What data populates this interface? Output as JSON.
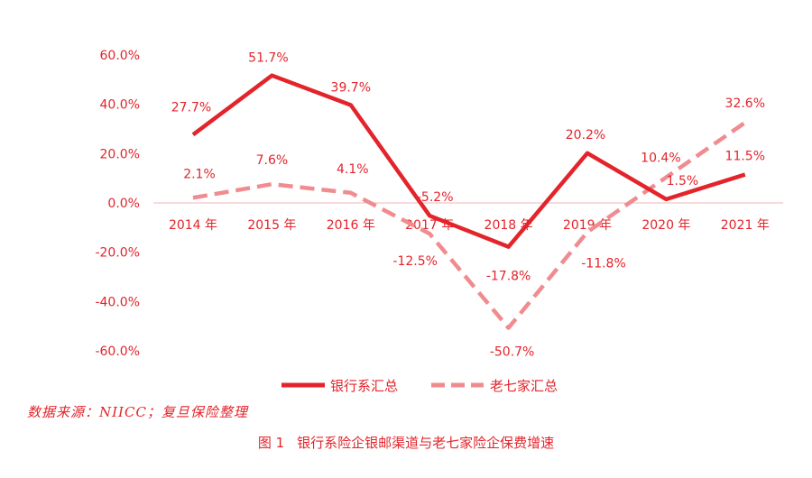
{
  "chart_data": {
    "type": "line",
    "categories": [
      "2014 年",
      "2015 年",
      "2016 年",
      "2017 年",
      "2018 年",
      "2019 年",
      "2020 年",
      "2021 年"
    ],
    "series": [
      {
        "name": "银行系汇总",
        "values": [
          27.7,
          51.7,
          39.7,
          -5.2,
          -17.8,
          20.2,
          1.5,
          11.5
        ],
        "labels": [
          "27.7%",
          "51.7%",
          "39.7%",
          "-5.2%",
          "-17.8%",
          "20.2%",
          "1.5%",
          "11.5%"
        ],
        "style": "solid",
        "color": "#e3242b"
      },
      {
        "name": "老七家汇总",
        "values": [
          2.1,
          7.6,
          4.1,
          -12.5,
          -50.7,
          -11.8,
          10.4,
          32.6
        ],
        "labels": [
          "2.1%",
          "7.6%",
          "4.1%",
          "-12.5%",
          "-50.7%",
          "-11.8%",
          "10.4%",
          "32.6%"
        ],
        "style": "dashed",
        "color": "#f08c8f"
      }
    ],
    "y_ticks": [
      "60.0%",
      "40.0%",
      "20.0%",
      "0.0%",
      "-20.0%",
      "-40.0%",
      "-60.0%"
    ],
    "ylim": [
      -60,
      60
    ],
    "grid": false,
    "legend_position": "bottom"
  },
  "source": "数据来源：NIICC；复旦保险整理",
  "caption": {
    "number": "图 1",
    "text": "银行系险企银邮渠道与老七家险企保费增速"
  },
  "colors": {
    "text": "#e3242b",
    "series_solid": "#e3242b",
    "series_dashed": "#f08c8f",
    "zero_line": "#f2c4c6"
  }
}
